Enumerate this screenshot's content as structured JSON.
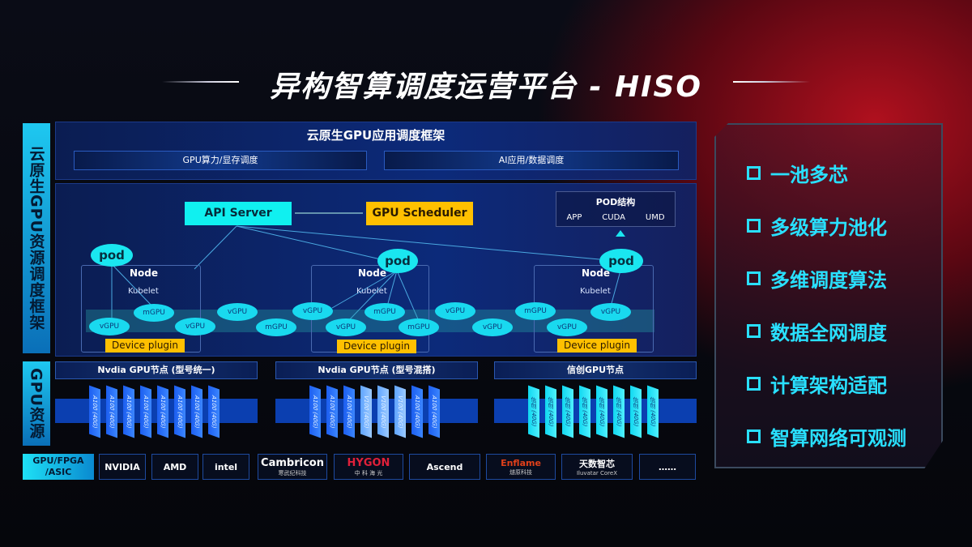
{
  "title": "异构智算调度运营平台 - HISO",
  "left_labels": {
    "framework": "云原生GPU资源调度框架",
    "resources": "GPU资源"
  },
  "framework": {
    "title": "云原生GPU应用调度框架",
    "bars": [
      "GPU算力/显存调度",
      "AI应用/数据调度"
    ]
  },
  "api_server": "API Server",
  "gpu_scheduler": "GPU Scheduler",
  "pod_struct": {
    "title": "POD结构",
    "items": [
      "APP",
      "CUDA",
      "UMD"
    ]
  },
  "pod": "pod",
  "node": "Node",
  "kubelet": "Kubelet",
  "device_plugin": "Device plugin",
  "virtual_gpus": [
    "vGPU",
    "mGPU",
    "vGPU",
    "vGPU",
    "mGPU",
    "vGPU",
    "vGPU",
    "mGPU",
    "mGPU",
    "vGPU",
    "vGPU",
    "mGPU",
    "vGPU",
    "vGPU"
  ],
  "gpu_nodes": [
    {
      "title": "Nvdia GPU节点 (型号统一)",
      "cards": [
        "A100 (40G)",
        "A100 (40G)",
        "A100 (40G)",
        "A100 (40G)",
        "A100 (40G)",
        "A100 (40G)",
        "A100 (40G)",
        "A100 (40G)"
      ]
    },
    {
      "title": "Nvdia GPU节点 (型号混搭)",
      "cards": [
        "A100 (40G)",
        "A100 (40G)",
        "A100 (40G)",
        "V100 (40G)",
        "V100 (40G)",
        "V100 (40G)",
        "A100 (40G)",
        "A100 (40G)"
      ]
    },
    {
      "title": "信创GPU节点",
      "cards": [
        "信创 (40G)",
        "信创 (40G)",
        "信创 (40G)",
        "信创 (40G)",
        "信创 (40G)",
        "信创 (40G)",
        "信创 (40G)",
        "信创 (40G)"
      ]
    }
  ],
  "chip_label": "GPU/FPGA /ASIC",
  "vendors": [
    {
      "name": "NVIDIA",
      "sub": ""
    },
    {
      "name": "AMD",
      "sub": ""
    },
    {
      "name": "intel",
      "sub": ""
    },
    {
      "name": "Cambricon",
      "sub": "寒武纪科技"
    },
    {
      "name": "HYGON",
      "sub": "中 科 海 光"
    },
    {
      "name": "Ascend",
      "sub": ""
    },
    {
      "name": "Enflame",
      "sub": "燧原科技"
    },
    {
      "name": "天数智芯",
      "sub": "Iluvatar CoreX"
    },
    {
      "name": "……",
      "sub": ""
    }
  ],
  "features": [
    "一池多芯",
    "多级算力池化",
    "多维调度算法",
    "数据全网调度",
    "计算架构适配",
    "智算网络可观测"
  ],
  "colors": {
    "cyan": "#1ae6f0",
    "yellow": "#ffc000",
    "blue": "#1c5ef0",
    "red": "#b0101e"
  }
}
